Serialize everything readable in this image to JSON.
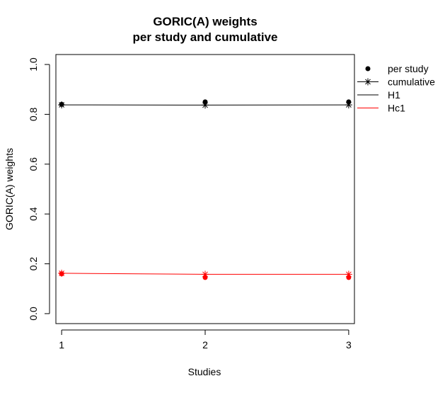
{
  "chart_data": {
    "type": "line",
    "title_line1": "GORIC(A) weights",
    "title_line2": "per study and cumulative",
    "xlabel": "Studies",
    "ylabel": "GORIC(A) weights",
    "x": [
      1,
      2,
      3
    ],
    "x_tick_labels": [
      "1",
      "2",
      "3"
    ],
    "xlim": [
      0.96,
      3.04
    ],
    "ylim": [
      -0.04,
      1.04
    ],
    "y_ticks": [
      0.0,
      0.2,
      0.4,
      0.6,
      0.8,
      1.0
    ],
    "y_tick_labels": [
      "0.0",
      "0.2",
      "0.4",
      "0.6",
      "0.8",
      "1.0"
    ],
    "grid": false,
    "legend_position": "outside right, top",
    "legend": [
      {
        "label": "per study",
        "symbol": "dot",
        "color": "#000000"
      },
      {
        "label": "cumulative",
        "symbol": "star",
        "color": "#000000"
      },
      {
        "label": "H1",
        "symbol": "line",
        "color": "#000000"
      },
      {
        "label": "Hc1",
        "symbol": "line",
        "color": "#ff0000"
      }
    ],
    "series": [
      {
        "name": "H1",
        "color": "#000000",
        "per_study": [
          0.84,
          0.85,
          0.85
        ],
        "cumulative": [
          0.838,
          0.837,
          0.838
        ]
      },
      {
        "name": "Hc1",
        "color": "#ff0000",
        "per_study": [
          0.16,
          0.145,
          0.145
        ],
        "cumulative": [
          0.162,
          0.158,
          0.158
        ]
      }
    ]
  }
}
